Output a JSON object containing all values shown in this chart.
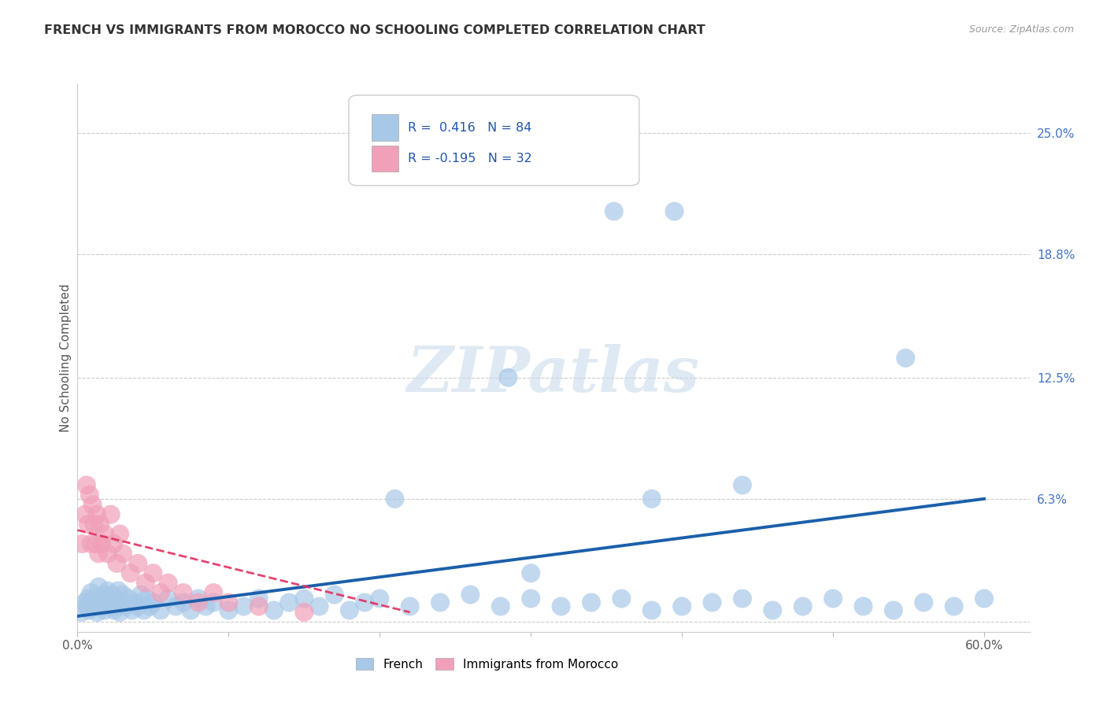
{
  "title": "FRENCH VS IMMIGRANTS FROM MOROCCO NO SCHOOLING COMPLETED CORRELATION CHART",
  "source": "Source: ZipAtlas.com",
  "ylabel": "No Schooling Completed",
  "r_french": 0.416,
  "n_french": 84,
  "r_morocco": -0.195,
  "n_morocco": 32,
  "blue_color": "#a8c8e8",
  "pink_color": "#f0a0b8",
  "blue_line_color": "#1a5faa",
  "pink_line_color": "#e03060",
  "watermark": "ZIPatlas",
  "xlim": [
    0.0,
    0.63
  ],
  "ylim": [
    -0.005,
    0.275
  ],
  "french_x": [
    0.003,
    0.005,
    0.006,
    0.007,
    0.008,
    0.009,
    0.01,
    0.011,
    0.012,
    0.013,
    0.014,
    0.015,
    0.016,
    0.017,
    0.018,
    0.019,
    0.02,
    0.021,
    0.022,
    0.023,
    0.024,
    0.025,
    0.026,
    0.027,
    0.028,
    0.029,
    0.03,
    0.032,
    0.034,
    0.036,
    0.038,
    0.04,
    0.042,
    0.044,
    0.046,
    0.048,
    0.05,
    0.055,
    0.06,
    0.065,
    0.07,
    0.075,
    0.08,
    0.085,
    0.09,
    0.1,
    0.11,
    0.12,
    0.13,
    0.14,
    0.15,
    0.16,
    0.17,
    0.18,
    0.19,
    0.2,
    0.22,
    0.24,
    0.26,
    0.28,
    0.3,
    0.32,
    0.34,
    0.36,
    0.38,
    0.4,
    0.42,
    0.44,
    0.46,
    0.48,
    0.5,
    0.52,
    0.54,
    0.56,
    0.58,
    0.6,
    0.355,
    0.395,
    0.548,
    0.285,
    0.21,
    0.38,
    0.44,
    0.3
  ],
  "french_y": [
    0.005,
    0.01,
    0.008,
    0.012,
    0.006,
    0.015,
    0.01,
    0.008,
    0.012,
    0.005,
    0.018,
    0.01,
    0.008,
    0.014,
    0.006,
    0.012,
    0.016,
    0.008,
    0.01,
    0.014,
    0.006,
    0.012,
    0.008,
    0.016,
    0.005,
    0.01,
    0.014,
    0.008,
    0.012,
    0.006,
    0.01,
    0.008,
    0.014,
    0.006,
    0.012,
    0.008,
    0.01,
    0.006,
    0.012,
    0.008,
    0.01,
    0.006,
    0.012,
    0.008,
    0.01,
    0.006,
    0.008,
    0.012,
    0.006,
    0.01,
    0.012,
    0.008,
    0.014,
    0.006,
    0.01,
    0.012,
    0.008,
    0.01,
    0.014,
    0.008,
    0.012,
    0.008,
    0.01,
    0.012,
    0.006,
    0.008,
    0.01,
    0.012,
    0.006,
    0.008,
    0.012,
    0.008,
    0.006,
    0.01,
    0.008,
    0.012,
    0.21,
    0.21,
    0.135,
    0.125,
    0.063,
    0.063,
    0.07,
    0.025
  ],
  "morocco_x": [
    0.003,
    0.005,
    0.006,
    0.007,
    0.008,
    0.009,
    0.01,
    0.011,
    0.012,
    0.013,
    0.014,
    0.015,
    0.016,
    0.018,
    0.02,
    0.022,
    0.024,
    0.026,
    0.028,
    0.03,
    0.035,
    0.04,
    0.045,
    0.05,
    0.055,
    0.06,
    0.07,
    0.08,
    0.09,
    0.1,
    0.12,
    0.15
  ],
  "morocco_y": [
    0.04,
    0.055,
    0.07,
    0.05,
    0.065,
    0.04,
    0.06,
    0.05,
    0.04,
    0.055,
    0.035,
    0.05,
    0.04,
    0.045,
    0.035,
    0.055,
    0.04,
    0.03,
    0.045,
    0.035,
    0.025,
    0.03,
    0.02,
    0.025,
    0.015,
    0.02,
    0.015,
    0.01,
    0.015,
    0.01,
    0.008,
    0.005
  ]
}
